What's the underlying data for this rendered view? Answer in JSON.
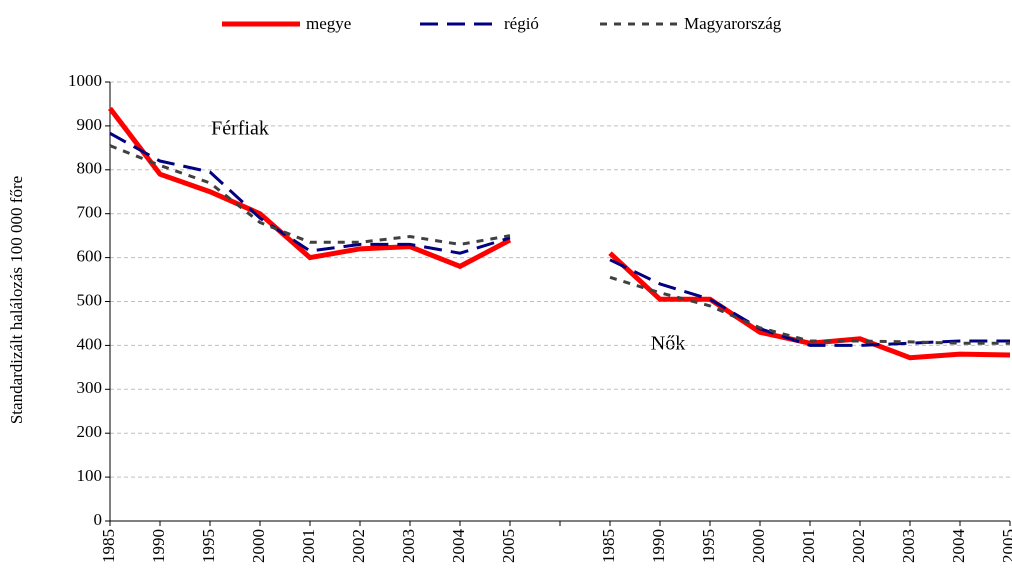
{
  "chart_data": {
    "type": "line",
    "y_label": "Standardizált halálozás 100 000  főre",
    "annotations": [
      "Férfiak",
      "Nők"
    ],
    "categories": [
      "1985",
      "1990",
      "1995",
      "2000",
      "2001",
      "2002",
      "2003",
      "2004",
      "2005",
      null,
      "1985",
      "1990",
      "1995",
      "2000",
      "2001",
      "2002",
      "2003",
      "2004",
      "2005"
    ],
    "series": [
      {
        "name": "megye",
        "color": "#ff0000",
        "values": [
          940,
          790,
          750,
          700,
          600,
          620,
          625,
          580,
          640,
          null,
          610,
          505,
          505,
          430,
          405,
          415,
          372,
          380,
          378
        ]
      },
      {
        "name": "régió",
        "color": "#000080",
        "values": [
          883,
          820,
          795,
          690,
          615,
          630,
          630,
          610,
          645,
          null,
          595,
          540,
          505,
          438,
          400,
          400,
          405,
          410,
          410
        ]
      },
      {
        "name": "Magyarország",
        "color": "#404040",
        "values": [
          855,
          810,
          770,
          680,
          635,
          635,
          648,
          630,
          650,
          null,
          555,
          520,
          490,
          440,
          410,
          410,
          408,
          405,
          405
        ]
      }
    ],
    "ylim": [
      0,
      1000
    ],
    "yticks": [
      0,
      100,
      200,
      300,
      400,
      500,
      600,
      700,
      800,
      900,
      1000
    ],
    "grid": true,
    "legend": "top"
  }
}
